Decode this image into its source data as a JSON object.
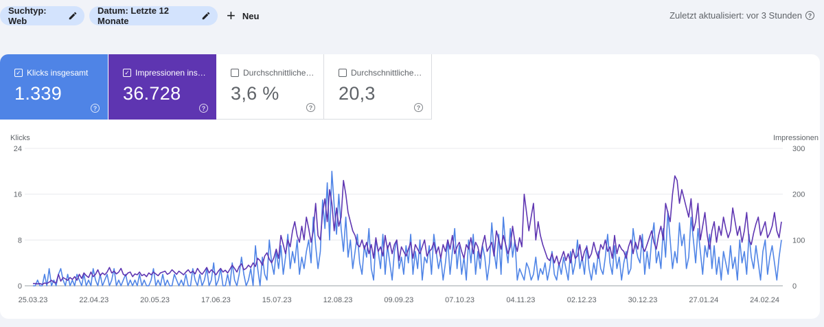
{
  "toolbar": {
    "chip_type": "Suchtyp: Web",
    "chip_date": "Datum: Letzte 12 Monate",
    "new_label": "Neu",
    "updated": "Zuletzt aktualisiert: vor 3 Stunden"
  },
  "metrics": [
    {
      "label": "Klicks insgesamt",
      "value": "1.339",
      "checked": true,
      "color": "#4f84e6"
    },
    {
      "label": "Impressionen ins…",
      "value": "36.728",
      "checked": true,
      "color": "#5e35b1"
    },
    {
      "label": "Durchschnittliche…",
      "value": "3,6 %",
      "checked": false
    },
    {
      "label": "Durchschnittliche…",
      "value": "20,3",
      "checked": false
    }
  ],
  "chart_data": {
    "type": "line",
    "left_axis_label": "Klicks",
    "right_axis_label": "Impressionen",
    "left_ticks": [
      "0",
      "8",
      "16",
      "24"
    ],
    "right_ticks": [
      "0",
      "100",
      "200",
      "300"
    ],
    "y_left_range": [
      0,
      24
    ],
    "y_right_range": [
      0,
      300
    ],
    "x_tick_labels": [
      "25.03.23",
      "22.04.23",
      "20.05.23",
      "17.06.23",
      "15.07.23",
      "12.08.23",
      "09.09.23",
      "07.10.23",
      "04.11.23",
      "02.12.23",
      "30.12.23",
      "27.01.24",
      "24.02.24"
    ],
    "grid": true,
    "series": [
      {
        "name": "Klicks",
        "axis": "left",
        "color": "#4f84e6",
        "values": [
          0,
          0,
          1,
          0,
          0,
          2,
          0,
          3,
          0,
          1,
          0,
          2,
          3,
          1,
          0,
          2,
          0,
          1,
          0,
          2,
          1,
          0,
          2,
          0,
          1,
          0,
          3,
          1,
          0,
          2,
          0,
          1,
          2,
          0,
          1,
          3,
          0,
          1,
          0,
          1,
          2,
          0,
          1,
          0,
          1,
          0,
          2,
          0,
          1,
          0,
          0,
          1,
          3,
          0,
          1,
          0,
          2,
          0,
          1,
          0,
          0,
          2,
          1,
          0,
          1,
          0,
          2,
          0,
          0,
          3,
          1,
          0,
          2,
          0,
          1,
          3,
          0,
          1,
          4,
          0,
          1,
          3,
          0,
          0,
          2,
          0,
          4,
          1,
          0,
          2,
          5,
          2,
          0,
          1,
          3,
          0,
          7,
          3,
          0,
          5,
          2,
          1,
          8,
          4,
          2,
          6,
          3,
          7,
          2,
          5,
          9,
          3,
          6,
          4,
          8,
          2,
          5,
          3,
          6,
          8,
          4,
          12,
          7,
          3,
          6,
          15,
          10,
          18,
          8,
          20,
          14,
          9,
          16,
          10,
          6,
          12,
          5,
          8,
          3,
          6,
          9,
          4,
          2,
          7,
          5,
          10,
          3,
          1,
          8,
          6,
          3,
          9,
          2,
          7,
          4,
          1,
          6,
          8,
          3,
          5,
          2,
          7,
          4,
          9,
          2,
          6,
          3,
          8,
          1,
          5,
          4,
          7,
          2,
          9,
          6,
          3,
          5,
          1,
          4,
          8,
          2,
          6,
          10,
          3,
          7,
          2,
          5,
          1,
          8,
          4,
          9,
          2,
          6,
          3,
          7,
          5,
          1,
          4,
          11,
          6,
          3,
          9,
          2,
          12,
          7,
          4,
          10,
          5,
          8,
          1,
          3,
          2,
          1,
          4,
          3,
          1,
          2,
          5,
          1,
          3,
          2,
          4,
          1,
          3,
          6,
          2,
          1,
          4,
          2,
          5,
          3,
          1,
          6,
          2,
          4,
          8,
          3,
          5,
          2,
          7,
          3,
          1,
          4,
          2,
          6,
          3,
          2,
          5,
          9,
          4,
          2,
          7,
          3,
          5,
          1,
          4,
          6,
          2,
          3,
          10,
          7,
          5,
          4,
          9,
          2,
          6,
          3,
          8,
          11,
          4,
          6,
          3,
          10,
          5,
          13,
          8,
          3,
          6,
          4,
          11,
          7,
          9,
          3,
          5,
          12,
          8,
          4,
          10,
          6,
          2,
          7,
          5,
          9,
          3,
          7,
          2,
          5,
          1,
          6,
          4,
          2,
          7,
          3,
          5,
          1,
          8,
          4,
          6,
          2,
          9,
          5,
          3,
          7,
          4,
          1,
          6,
          8,
          2,
          5,
          7,
          4,
          1,
          5,
          8
        ]
      },
      {
        "name": "Impressionen",
        "axis": "right",
        "color": "#5e35b1",
        "values": [
          5,
          5,
          4,
          5,
          3,
          6,
          5,
          8,
          12,
          8,
          6,
          25,
          10,
          18,
          15,
          12,
          18,
          14,
          20,
          12,
          25,
          16,
          28,
          22,
          18,
          30,
          20,
          25,
          35,
          22,
          28,
          24,
          30,
          40,
          28,
          32,
          26,
          30,
          38,
          25,
          22,
          28,
          30,
          20,
          26,
          24,
          30,
          22,
          25,
          20,
          28,
          24,
          30,
          26,
          22,
          28,
          30,
          32,
          25,
          28,
          35,
          30,
          25,
          32,
          28,
          24,
          30,
          35,
          28,
          32,
          26,
          38,
          30,
          25,
          32,
          40,
          28,
          35,
          30,
          24,
          32,
          38,
          30,
          34,
          28,
          36,
          45,
          38,
          30,
          42,
          48,
          35,
          38,
          45,
          40,
          50,
          42,
          60,
          55,
          45,
          65,
          72,
          58,
          50,
          62,
          80,
          60,
          110,
          90,
          70,
          100,
          85,
          120,
          140,
          110,
          95,
          130,
          100,
          150,
          125,
          95,
          120,
          180,
          110,
          100,
          160,
          190,
          140,
          210,
          180,
          120,
          170,
          130,
          150,
          230,
          200,
          160,
          140,
          120,
          110,
          90,
          85,
          100,
          80,
          95,
          70,
          90,
          60,
          105,
          75,
          85,
          65,
          110,
          80,
          95,
          70,
          90,
          100,
          55,
          85,
          75,
          65,
          80,
          95,
          60,
          90,
          80,
          70,
          85,
          100,
          65,
          75,
          80,
          95,
          70,
          85,
          60,
          90,
          75,
          100,
          80,
          110,
          70,
          85,
          95,
          75,
          60,
          90,
          80,
          105,
          70,
          95,
          85,
          60,
          90,
          110,
          75,
          85,
          95,
          65,
          120,
          100,
          80,
          110,
          90,
          70,
          85,
          130,
          95,
          75,
          105,
          85,
          200,
          160,
          120,
          150,
          180,
          100,
          140,
          110,
          90,
          75,
          60,
          55,
          70,
          50,
          65,
          45,
          60,
          75,
          55,
          70,
          50,
          80,
          60,
          65,
          90,
          55,
          75,
          85,
          60,
          70,
          95,
          75,
          60,
          90,
          80,
          100,
          75,
          85,
          60,
          110,
          70,
          90,
          80,
          75,
          60,
          85,
          100,
          70,
          95,
          80,
          110,
          85,
          75,
          90,
          105,
          120,
          95,
          80,
          110,
          130,
          100,
          180,
          160,
          140,
          200,
          240,
          230,
          180,
          210,
          190,
          170,
          150,
          190,
          120,
          140,
          180,
          100,
          130,
          160,
          110,
          80,
          120,
          140,
          95,
          130,
          110,
          150,
          125,
          105,
          120,
          170,
          140,
          110,
          130,
          95,
          120,
          160,
          100,
          90,
          115,
          135,
          150,
          110,
          125,
          140,
          105,
          115,
          130,
          160,
          120,
          105,
          140
        ]
      }
    ]
  }
}
